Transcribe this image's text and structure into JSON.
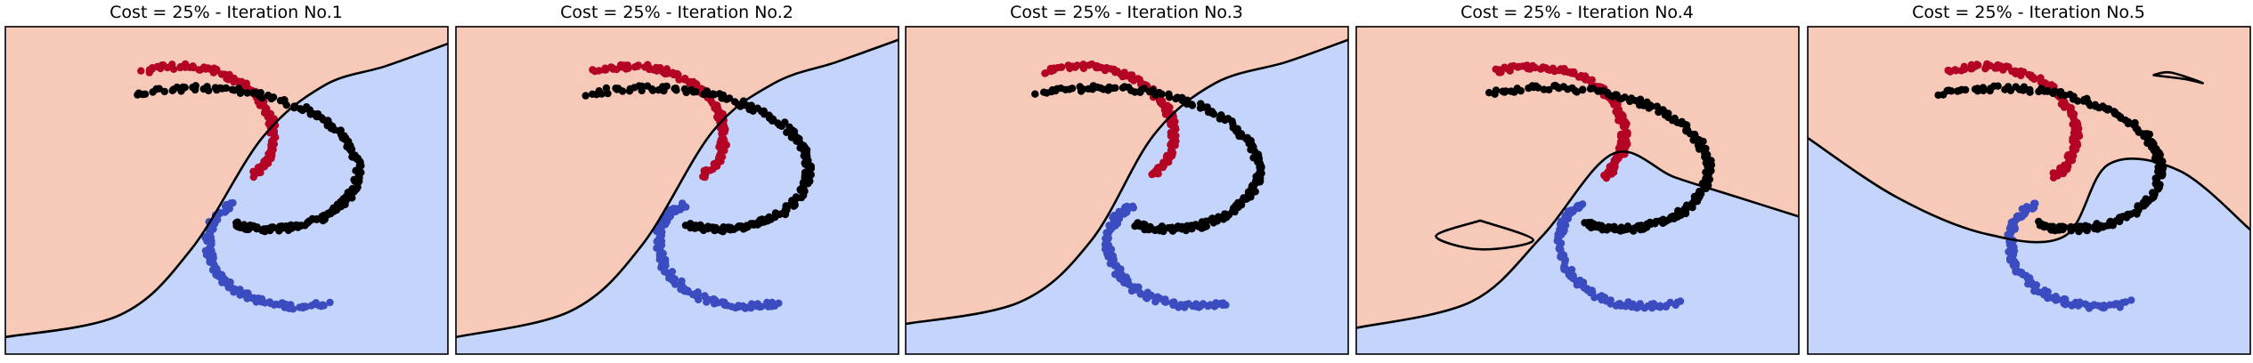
{
  "colors": {
    "region_red": "#f6c9b9",
    "region_blue": "#c4d4fb",
    "class_red": "#b40426",
    "class_blue": "#3b4cc0",
    "class_black": "#000000",
    "boundary": "#000000"
  },
  "chart_data": [
    {
      "type": "scatter",
      "title": "Cost = 25% - Iteration No.1",
      "xlim": [
        -1.25,
        1.25
      ],
      "ylim": [
        -1.25,
        1.25
      ],
      "series": [
        {
          "class": "red",
          "arm_angle_range_deg": [
            330,
            120
          ],
          "count": 120
        },
        {
          "class": "blue",
          "arm_angle_range_deg": [
            150,
            300
          ],
          "count": 120
        },
        {
          "class": "black",
          "arm_angle_range_deg": [
            270,
            480
          ],
          "count": 200
        }
      ],
      "boundaries": [
        {
          "x": [
            -1.25,
            -0.6,
            -0.2,
            0.2,
            0.55,
            0.9,
            1.25
          ],
          "y": [
            -1.12,
            -0.95,
            -0.45,
            0.4,
            0.8,
            0.95,
            1.12
          ]
        }
      ]
    },
    {
      "type": "scatter",
      "title": "Cost = 25% - Iteration No.2",
      "xlim": [
        -1.25,
        1.25
      ],
      "ylim": [
        -1.25,
        1.25
      ],
      "series": [
        {
          "class": "red",
          "arm_angle_range_deg": [
            330,
            120
          ],
          "count": 120
        },
        {
          "class": "blue",
          "arm_angle_range_deg": [
            150,
            300
          ],
          "count": 120
        },
        {
          "class": "black",
          "arm_angle_range_deg": [
            270,
            480
          ],
          "count": 200
        }
      ],
      "boundaries": [
        {
          "x": [
            -1.25,
            -0.6,
            -0.2,
            0.2,
            0.55,
            0.9,
            1.25
          ],
          "y": [
            -1.12,
            -0.92,
            -0.42,
            0.45,
            0.82,
            0.98,
            1.15
          ]
        }
      ]
    },
    {
      "type": "scatter",
      "title": "Cost = 25% - Iteration No.3",
      "xlim": [
        -1.25,
        1.25
      ],
      "ylim": [
        -1.25,
        1.25
      ],
      "series": [
        {
          "class": "red",
          "arm_angle_range_deg": [
            330,
            120
          ],
          "count": 120
        },
        {
          "class": "blue",
          "arm_angle_range_deg": [
            150,
            300
          ],
          "count": 120
        },
        {
          "class": "black",
          "arm_angle_range_deg": [
            270,
            480
          ],
          "count": 200
        }
      ],
      "boundaries": [
        {
          "x": [
            -1.25,
            -0.6,
            -0.2,
            0.15,
            0.5,
            0.9,
            1.25
          ],
          "y": [
            -1.02,
            -0.85,
            -0.38,
            0.42,
            0.82,
            0.98,
            1.15
          ]
        }
      ]
    },
    {
      "type": "scatter",
      "title": "Cost = 25% - Iteration No.4",
      "xlim": [
        -1.25,
        1.25
      ],
      "ylim": [
        -1.25,
        1.25
      ],
      "series": [
        {
          "class": "red",
          "arm_angle_range_deg": [
            330,
            120
          ],
          "count": 120
        },
        {
          "class": "blue",
          "arm_angle_range_deg": [
            150,
            300
          ],
          "count": 120
        },
        {
          "class": "black",
          "arm_angle_range_deg": [
            270,
            480
          ],
          "count": 200
        }
      ],
      "boundaries": [
        {
          "x": [
            -1.25,
            -0.6,
            -0.2,
            0.2,
            0.55,
            0.9,
            1.25
          ],
          "y": [
            -1.05,
            -0.85,
            -0.35,
            0.28,
            0.1,
            -0.05,
            -0.2
          ]
        },
        {
          "x": [
            -0.55,
            -0.25,
            -0.55,
            -0.8,
            -0.55
          ],
          "y": [
            -0.23,
            -0.38,
            -0.45,
            -0.35,
            -0.23
          ],
          "closed": true
        }
      ]
    },
    {
      "type": "scatter",
      "title": "Cost = 25% - Iteration No.5",
      "xlim": [
        -1.25,
        1.25
      ],
      "ylim": [
        -1.25,
        1.25
      ],
      "series": [
        {
          "class": "red",
          "arm_angle_range_deg": [
            330,
            120
          ],
          "count": 120
        },
        {
          "class": "blue",
          "arm_angle_range_deg": [
            150,
            300
          ],
          "count": 120
        },
        {
          "class": "black",
          "arm_angle_range_deg": [
            270,
            480
          ],
          "count": 200
        }
      ],
      "boundaries": [
        {
          "x": [
            -1.25,
            -0.75,
            -0.25,
            0.2,
            0.45,
            0.85,
            1.25
          ],
          "y": [
            0.4,
            -0.05,
            -0.33,
            -0.35,
            0.2,
            0.15,
            -0.3
          ]
        },
        {
          "x": [
            0.7,
            0.88,
            0.98,
            0.8,
            0.7
          ],
          "y": [
            0.88,
            0.85,
            0.82,
            0.9,
            0.88
          ],
          "closed": true
        }
      ]
    }
  ]
}
